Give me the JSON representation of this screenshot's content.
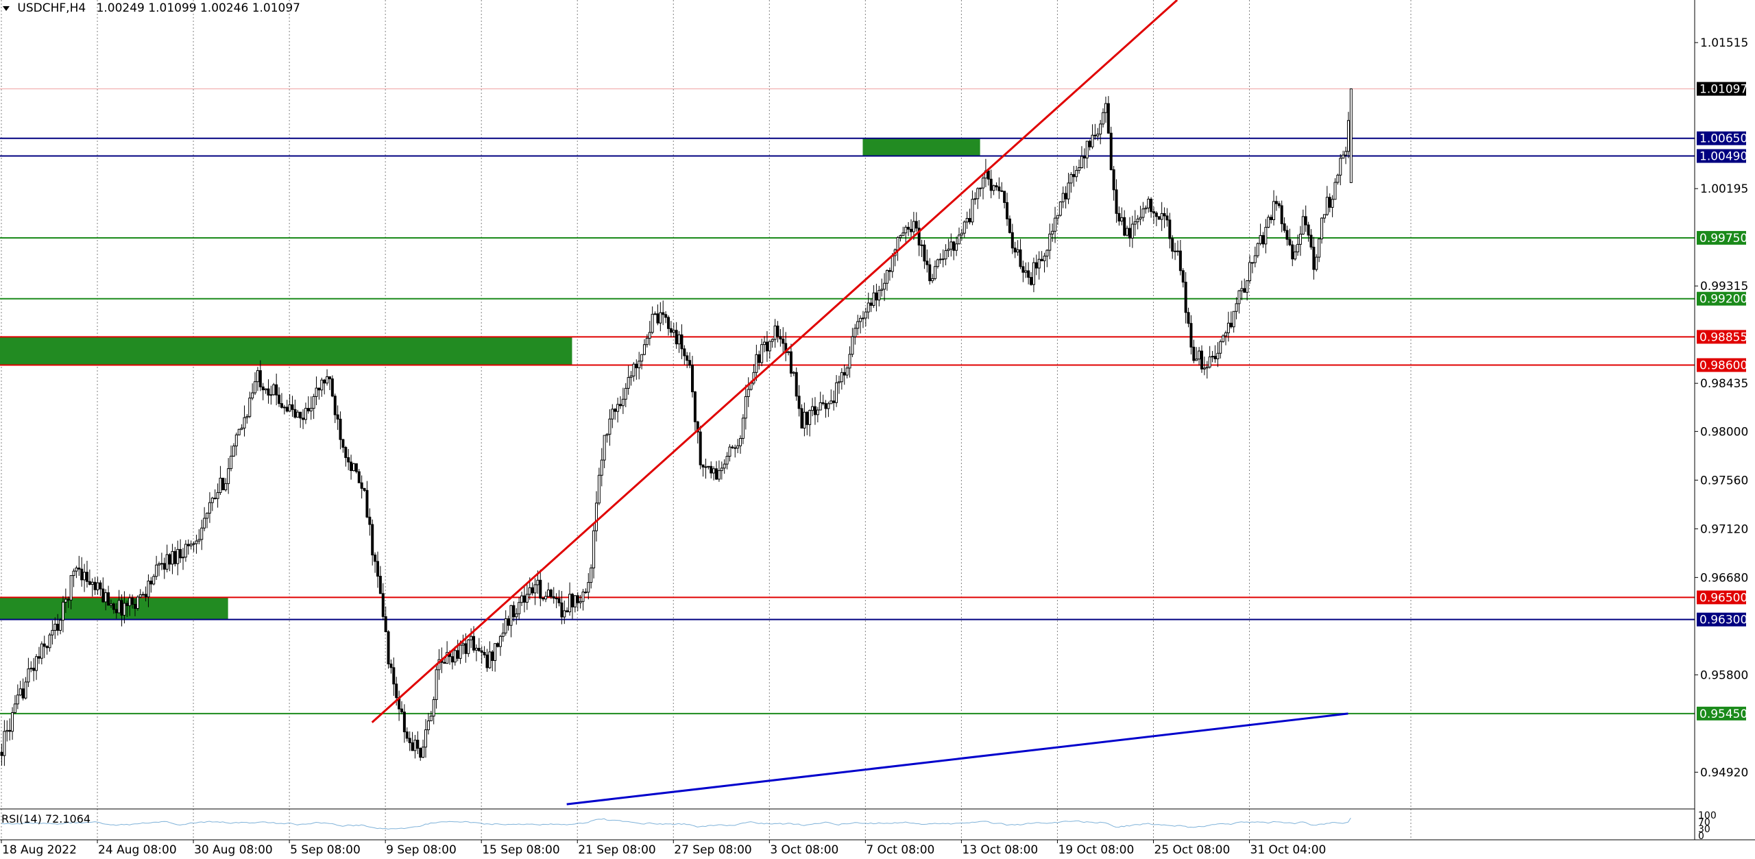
{
  "header": {
    "symbol": "USDCHF,H4",
    "ohlc": "1.00249 1.01099 1.00246 1.01097"
  },
  "colors": {
    "background": "#ffffff",
    "grid": "#808080",
    "candle": "#000000",
    "red_line": "#e00000",
    "navy_line": "#000080",
    "green_line": "#1a8a1a",
    "zone_green": "#228b22",
    "blue_trend": "#0000cc",
    "rsi_line": "#7fb2d9"
  },
  "chart_data": {
    "type": "candlestick",
    "symbol": "USDCHF",
    "timeframe": "H4",
    "y_range": [
      0.946,
      1.019
    ],
    "y_ticks": [
      {
        "value": 1.01515,
        "label": "1.01515"
      },
      {
        "value": 1.00195,
        "label": "1.00195"
      },
      {
        "value": 0.99315,
        "label": "0.99315"
      },
      {
        "value": 0.98435,
        "label": "0.98435"
      },
      {
        "value": 0.98,
        "label": "0.98000"
      },
      {
        "value": 0.9756,
        "label": "0.97560"
      },
      {
        "value": 0.9712,
        "label": "0.97120"
      },
      {
        "value": 0.9668,
        "label": "0.96680"
      },
      {
        "value": 0.958,
        "label": "0.95800"
      },
      {
        "value": 0.9492,
        "label": "0.94920"
      }
    ],
    "x_labels": [
      {
        "bar": 0,
        "label": "18 Aug 2022"
      },
      {
        "bar": 36,
        "label": "24 Aug 08:00"
      },
      {
        "bar": 72,
        "label": "30 Aug 08:00"
      },
      {
        "bar": 108,
        "label": "5 Sep 08:00"
      },
      {
        "bar": 144,
        "label": "9 Sep 08:00"
      },
      {
        "bar": 180,
        "label": "15 Sep 08:00"
      },
      {
        "bar": 216,
        "label": "21 Sep 08:00"
      },
      {
        "bar": 252,
        "label": "27 Sep 08:00"
      },
      {
        "bar": 288,
        "label": "3 Oct 08:00"
      },
      {
        "bar": 324,
        "label": "7 Oct 08:00"
      },
      {
        "bar": 360,
        "label": "13 Oct 08:00"
      },
      {
        "bar": 396,
        "label": "19 Oct 08:00"
      },
      {
        "bar": 432,
        "label": "25 Oct 08:00"
      },
      {
        "bar": 468,
        "label": "31 Oct 04:00"
      }
    ],
    "anchors": [
      [
        0,
        0.9515
      ],
      [
        10,
        0.958
      ],
      [
        22,
        0.963
      ],
      [
        28,
        0.968
      ],
      [
        34,
        0.966
      ],
      [
        44,
        0.964
      ],
      [
        52,
        0.965
      ],
      [
        60,
        0.968
      ],
      [
        72,
        0.97
      ],
      [
        84,
        0.976
      ],
      [
        92,
        0.982
      ],
      [
        96,
        0.985
      ],
      [
        104,
        0.983
      ],
      [
        112,
        0.981
      ],
      [
        122,
        0.985
      ],
      [
        128,
        0.979
      ],
      [
        136,
        0.974
      ],
      [
        142,
        0.965
      ],
      [
        146,
        0.958
      ],
      [
        152,
        0.952
      ],
      [
        158,
        0.951
      ],
      [
        164,
        0.959
      ],
      [
        176,
        0.961
      ],
      [
        182,
        0.959
      ],
      [
        192,
        0.964
      ],
      [
        200,
        0.966
      ],
      [
        210,
        0.964
      ],
      [
        220,
        0.966
      ],
      [
        226,
        0.98
      ],
      [
        236,
        0.985
      ],
      [
        244,
        0.99
      ],
      [
        250,
        0.99
      ],
      [
        258,
        0.986
      ],
      [
        262,
        0.977
      ],
      [
        268,
        0.976
      ],
      [
        276,
        0.979
      ],
      [
        282,
        0.986
      ],
      [
        290,
        0.989
      ],
      [
        296,
        0.986
      ],
      [
        300,
        0.981
      ],
      [
        308,
        0.982
      ],
      [
        314,
        0.984
      ],
      [
        320,
        0.989
      ],
      [
        330,
        0.993
      ],
      [
        336,
        0.997
      ],
      [
        342,
        0.999
      ],
      [
        348,
        0.994
      ],
      [
        354,
        0.996
      ],
      [
        362,
        0.999
      ],
      [
        368,
        1.003
      ],
      [
        374,
        1.002
      ],
      [
        380,
        0.996
      ],
      [
        386,
        0.994
      ],
      [
        392,
        0.997
      ],
      [
        400,
        1.002
      ],
      [
        408,
        1.006
      ],
      [
        414,
        1.009
      ],
      [
        418,
        0.999
      ],
      [
        424,
        0.998
      ],
      [
        430,
        1.001
      ],
      [
        436,
        0.999
      ],
      [
        442,
        0.995
      ],
      [
        446,
        0.987
      ],
      [
        452,
        0.986
      ],
      [
        458,
        0.988
      ],
      [
        464,
        0.992
      ],
      [
        472,
        0.997
      ],
      [
        478,
        1.001
      ],
      [
        484,
        0.996
      ],
      [
        488,
        0.999
      ],
      [
        492,
        0.995
      ],
      [
        496,
        1.0
      ],
      [
        500,
        1.002
      ],
      [
        504,
        1.006
      ],
      [
        506,
        1.0109
      ]
    ],
    "last_close": 1.01097,
    "price_lines": [
      {
        "value": 1.0065,
        "label": "1.00650",
        "color": "navy",
        "full": true
      },
      {
        "value": 1.0049,
        "label": "1.00490",
        "color": "navy",
        "full": true
      },
      {
        "value": 0.9975,
        "label": "0.99750",
        "color": "green",
        "full": true
      },
      {
        "value": 0.992,
        "label": "0.99200",
        "color": "green",
        "full": true
      },
      {
        "value": 0.98855,
        "label": "0.98855",
        "color": "red",
        "full": true
      },
      {
        "value": 0.986,
        "label": "0.98600",
        "color": "red",
        "full": true
      },
      {
        "value": 0.965,
        "label": "0.96500",
        "color": "red",
        "full": true
      },
      {
        "value": 0.963,
        "label": "0.96300",
        "color": "navy",
        "full": true
      },
      {
        "value": 0.9545,
        "label": "0.95450",
        "color": "green",
        "full": true
      }
    ],
    "current_price": {
      "value": 1.01097,
      "label": "1.01097"
    },
    "zones": [
      {
        "bar_start": -1,
        "bar_end": 214,
        "from": 0.986,
        "to": 0.98855
      },
      {
        "bar_start": -1,
        "bar_end": 85,
        "from": 0.963,
        "to": 0.965
      },
      {
        "bar_start": 323,
        "bar_end": 367,
        "from": 1.0049,
        "to": 1.0065
      }
    ],
    "trendlines": [
      {
        "bar1": 139,
        "price1": 0.9537,
        "bar2": 446,
        "price2": 1.0201,
        "color": "red",
        "extend": true
      },
      {
        "bar1": 212,
        "price1": 0.9463,
        "bar2": 505,
        "price2": 0.9545,
        "color": "blue",
        "extend": false
      }
    ],
    "rsi": {
      "label": "RSI(14) 72.1064",
      "period": 14,
      "value": 72.1064,
      "levels": [
        "100",
        "70",
        "30",
        "0"
      ]
    }
  }
}
